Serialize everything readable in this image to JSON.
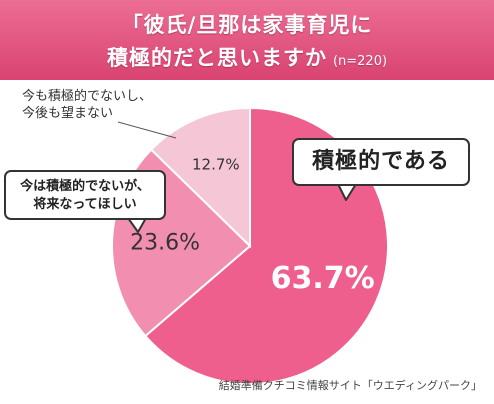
{
  "header": {
    "title_line1": "「彼氏/旦那は家事育児に",
    "title_line2": "積極的だと思いますか",
    "title_sample": "(n=220)"
  },
  "chart_data": {
    "type": "pie",
    "title": "「彼氏/旦那は家事育児に積極的だと思いますか」",
    "sample_size": "(n=220)",
    "slices": [
      {
        "label": "積極的である",
        "value": 63.7,
        "display": "63.7%",
        "color": "#ee5f8d"
      },
      {
        "label": "今は積極的でないが、将来なってほしい",
        "value": 23.6,
        "display": "23.6%",
        "color": "#f28fb0"
      },
      {
        "label": "今も積極的でないし、今後も望まない",
        "value": 12.7,
        "display": "12.7%",
        "color": "#f5c6d6"
      }
    ]
  },
  "labels": {
    "top_label_line1": "今も積極的でないし、",
    "top_label_line2": "今後も望まない",
    "left_callout_line1": "今は積極的でないが、",
    "left_callout_line2": "将来なってほしい",
    "right_callout": "積極的である"
  },
  "footer": {
    "credit": "結婚準備クチコミ情報サイト「ウエディングパーク」"
  }
}
